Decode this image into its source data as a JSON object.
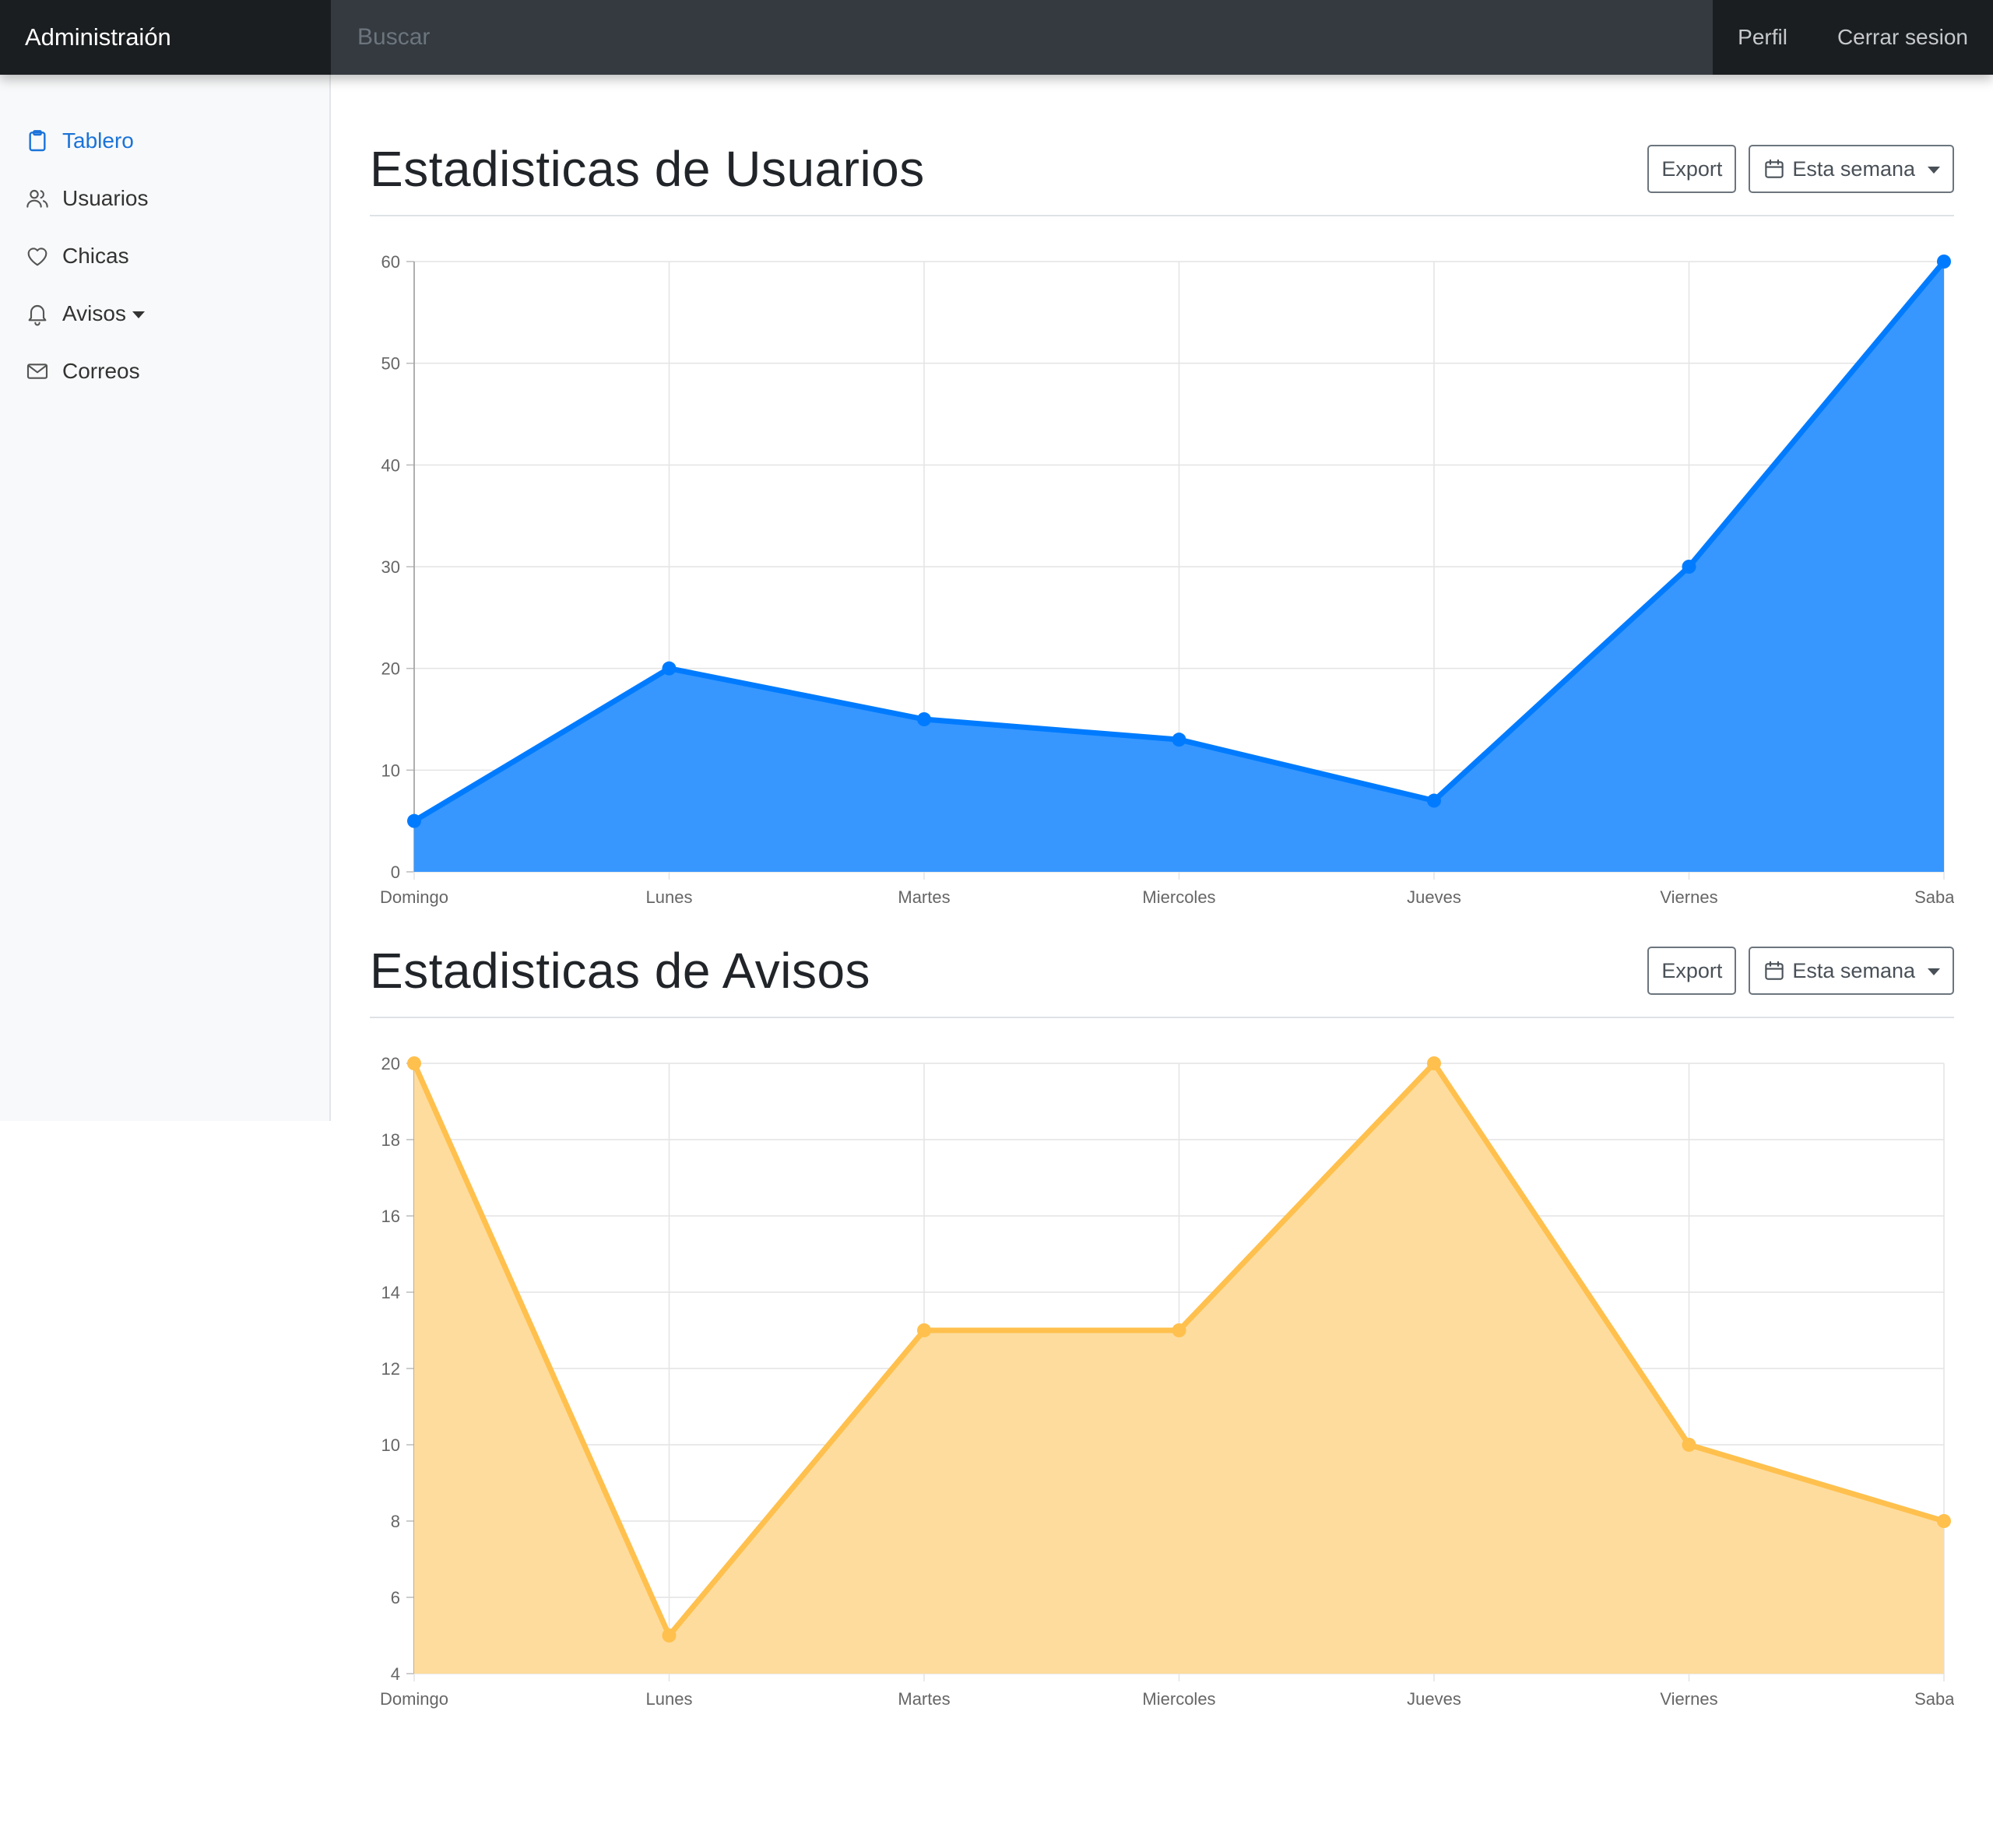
{
  "navbar": {
    "brand": "Administraión",
    "search_placeholder": "Buscar",
    "links": [
      "Perfil",
      "Cerrar sesion"
    ]
  },
  "sidebar": {
    "items": [
      {
        "label": "Tablero",
        "icon": "clipboard-icon",
        "active": true
      },
      {
        "label": "Usuarios",
        "icon": "users-icon"
      },
      {
        "label": "Chicas",
        "icon": "heart-icon"
      },
      {
        "label": "Avisos",
        "icon": "bell-icon",
        "dropdown": true
      },
      {
        "label": "Correos",
        "icon": "mail-icon"
      }
    ]
  },
  "sections": [
    {
      "title": "Estadisticas de Usuarios",
      "export_label": "Export",
      "range_label": "Esta semana"
    },
    {
      "title": "Estadisticas de Avisos",
      "export_label": "Export",
      "range_label": "Esta semana"
    }
  ],
  "colors": {
    "accent": "#1a73d9",
    "users_line": "#007bff",
    "users_fill": "#3797ff",
    "avisos_line": "#ffc04d",
    "avisos_fill": "#fedc9e"
  },
  "chart_data": [
    {
      "type": "area",
      "categories": [
        "Domingo",
        "Lunes",
        "Martes",
        "Miercoles",
        "Jueves",
        "Viernes",
        "Sabado"
      ],
      "values": [
        5,
        20,
        15,
        13,
        7,
        30,
        60
      ],
      "ylim": [
        0,
        60
      ],
      "yticks": [
        0,
        10,
        20,
        30,
        40,
        50,
        60
      ],
      "grid": true
    },
    {
      "type": "area",
      "categories": [
        "Domingo",
        "Lunes",
        "Martes",
        "Miercoles",
        "Jueves",
        "Viernes",
        "Sabado"
      ],
      "values": [
        20,
        5,
        13,
        13,
        20,
        10,
        8
      ],
      "ylim": [
        4,
        20
      ],
      "yticks": [
        4,
        6,
        8,
        10,
        12,
        14,
        16,
        18,
        20
      ],
      "grid": true
    }
  ]
}
